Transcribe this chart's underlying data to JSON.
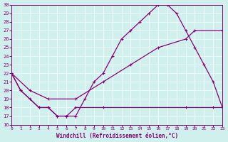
{
  "xlabel": "Windchill (Refroidissement éolien,°C)",
  "bg_color": "#d0f0ee",
  "line_color": "#880077",
  "xlim": [
    0,
    23
  ],
  "ylim": [
    16,
    30
  ],
  "yticks": [
    16,
    17,
    18,
    19,
    20,
    21,
    22,
    23,
    24,
    25,
    26,
    27,
    28,
    29,
    30
  ],
  "xticks": [
    0,
    1,
    2,
    3,
    4,
    5,
    6,
    7,
    8,
    9,
    10,
    11,
    12,
    13,
    14,
    15,
    16,
    17,
    18,
    19,
    20,
    21,
    22,
    23
  ],
  "curve1_x": [
    0,
    1,
    2,
    3,
    4,
    5,
    6,
    7,
    8,
    9,
    10,
    11,
    12,
    13,
    14,
    15,
    16,
    17,
    18,
    19,
    20,
    21,
    22,
    23
  ],
  "curve1_y": [
    22,
    20,
    19,
    18,
    18,
    17,
    17,
    17,
    19,
    21,
    22,
    24,
    26,
    27,
    28,
    29,
    30,
    30,
    29,
    27,
    25,
    23,
    21,
    18
  ],
  "curve2_x": [
    0,
    2,
    4,
    7,
    10,
    13,
    16,
    19,
    20,
    23
  ],
  "curve2_y": [
    22,
    20,
    19,
    19,
    21,
    23,
    25,
    26,
    27,
    27
  ],
  "curve3_x": [
    0,
    1,
    3,
    4,
    5,
    6,
    7,
    10,
    19,
    22,
    23
  ],
  "curve3_y": [
    22,
    20,
    18,
    18,
    17,
    17,
    18,
    18,
    18,
    18,
    18
  ]
}
